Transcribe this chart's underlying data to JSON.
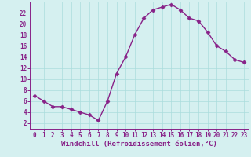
{
  "x": [
    0,
    1,
    2,
    3,
    4,
    5,
    6,
    7,
    8,
    9,
    10,
    11,
    12,
    13,
    14,
    15,
    16,
    17,
    18,
    19,
    20,
    21,
    22,
    23
  ],
  "y": [
    7,
    6,
    5,
    5,
    4.5,
    4,
    3.5,
    2.5,
    6,
    11,
    14,
    18,
    21,
    22.5,
    23,
    23.5,
    22.5,
    21,
    20.5,
    18.5,
    16,
    15,
    13.5,
    13
  ],
  "line_color": "#882288",
  "marker": "D",
  "marker_size": 2.5,
  "bg_color": "#d5f0f0",
  "grid_color": "#aadddd",
  "xlabel": "Windchill (Refroidissement éolien,°C)",
  "xlim": [
    -0.5,
    23.5
  ],
  "ylim": [
    1,
    24
  ],
  "yticks": [
    2,
    4,
    6,
    8,
    10,
    12,
    14,
    16,
    18,
    20,
    22
  ],
  "xticks": [
    0,
    1,
    2,
    3,
    4,
    5,
    6,
    7,
    8,
    9,
    10,
    11,
    12,
    13,
    14,
    15,
    16,
    17,
    18,
    19,
    20,
    21,
    22,
    23
  ],
  "tick_label_fontsize": 5.5,
  "xlabel_fontsize": 6.5,
  "line_width": 1.0,
  "spine_color": "#882288"
}
